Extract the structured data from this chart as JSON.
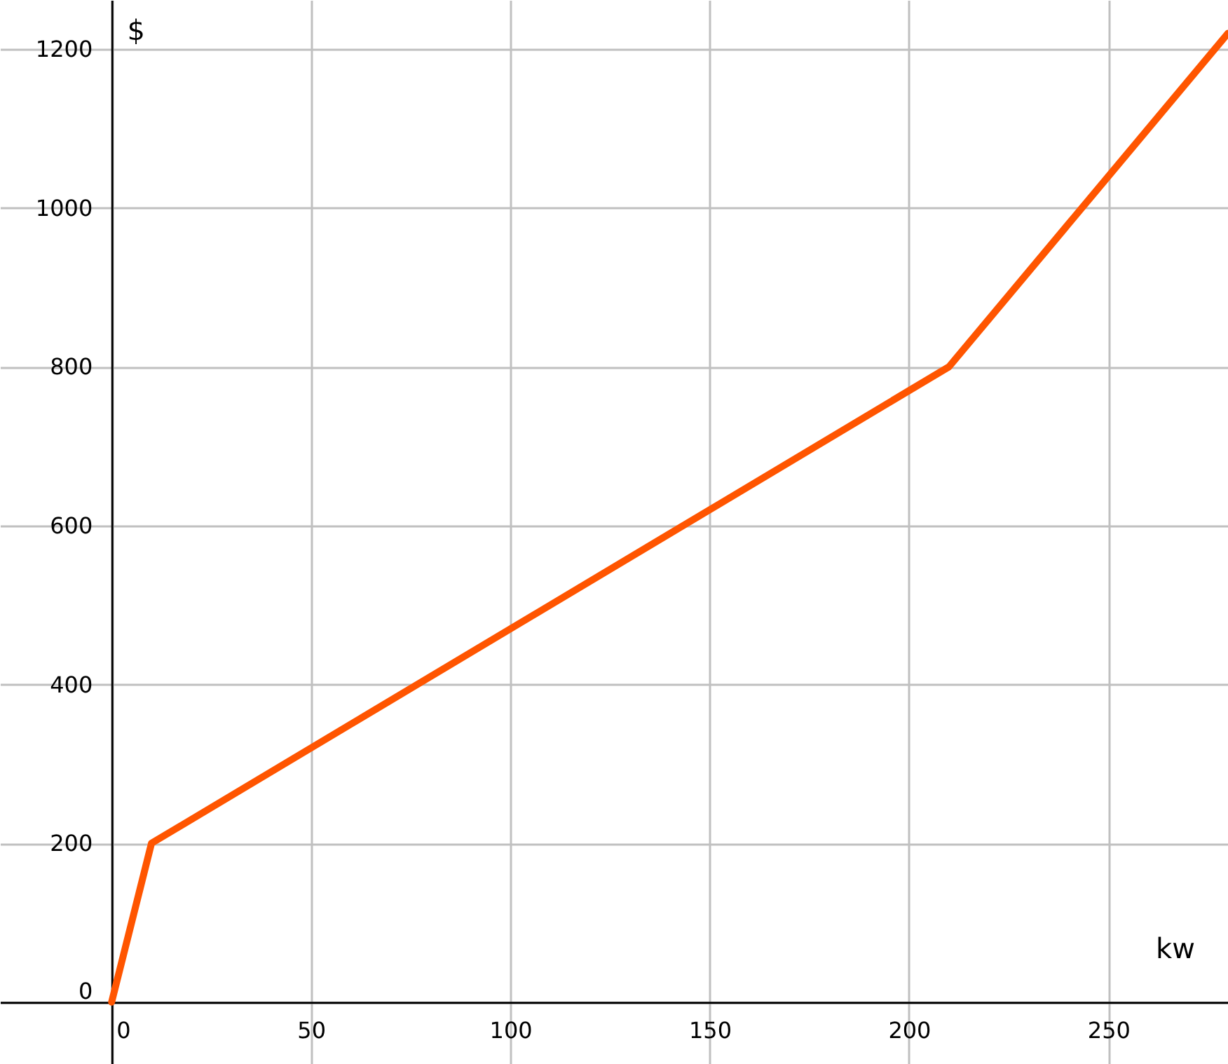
{
  "chart_data": {
    "type": "line",
    "xlabel": "kw",
    "ylabel": "$",
    "x": [
      0,
      10,
      210,
      280
    ],
    "series": [
      {
        "color": "#ff5500",
        "values": [
          0,
          200,
          800,
          1220
        ]
      }
    ],
    "xlim": [
      -28,
      280
    ],
    "ylim": [
      -78,
      1262
    ],
    "xticks": [
      0,
      50,
      100,
      150,
      200,
      250
    ],
    "yticks": [
      0,
      200,
      400,
      600,
      800,
      1000,
      1200
    ],
    "grid": true,
    "marker": "none",
    "line_style": "solid"
  }
}
